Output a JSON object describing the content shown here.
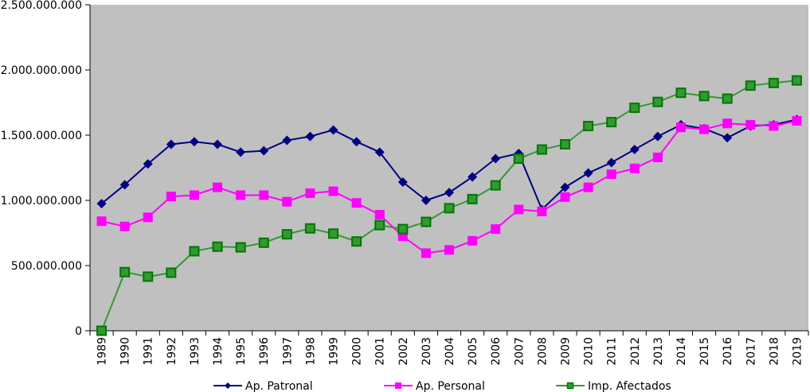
{
  "chart_data": {
    "type": "line",
    "title": "",
    "xlabel": "",
    "ylabel": "",
    "ylim": [
      0,
      2500000000
    ],
    "yticks": [
      0,
      500000000,
      1000000000,
      1500000000,
      2000000000,
      2500000000
    ],
    "ytick_labels": [
      "0",
      "500.000.000",
      "1.000.000.000",
      "1.500.000.000",
      "2.000.000.000",
      "2.500.000.000"
    ],
    "grid": false,
    "legend_position": "bottom",
    "plot_background": "#C0C0C0",
    "categories": [
      "1989",
      "1990",
      "1991",
      "1992",
      "1993",
      "1994",
      "1995",
      "1996",
      "1997",
      "1998",
      "1999",
      "2000",
      "2001",
      "2002",
      "2003",
      "2004",
      "2005",
      "2006",
      "2007",
      "2008",
      "2009",
      "2010",
      "2011",
      "2012",
      "2013",
      "2014",
      "2015",
      "2016",
      "2017",
      "2018",
      "2019"
    ],
    "series": [
      {
        "name": "Ap. Patronal",
        "color": "#000080",
        "marker": "diamond",
        "values": [
          975000000,
          1120000000,
          1280000000,
          1430000000,
          1450000000,
          1430000000,
          1370000000,
          1380000000,
          1460000000,
          1490000000,
          1540000000,
          1450000000,
          1370000000,
          1140000000,
          1000000000,
          1060000000,
          1180000000,
          1320000000,
          1360000000,
          930000000,
          1100000000,
          1210000000,
          1290000000,
          1390000000,
          1490000000,
          1580000000,
          1550000000,
          1480000000,
          1570000000,
          1580000000,
          1620000000
        ]
      },
      {
        "name": "Ap. Personal",
        "color": "#FF00FF",
        "marker": "square",
        "values": [
          840000000,
          800000000,
          870000000,
          1030000000,
          1040000000,
          1100000000,
          1040000000,
          1040000000,
          990000000,
          1055000000,
          1070000000,
          980000000,
          890000000,
          725000000,
          595000000,
          620000000,
          690000000,
          780000000,
          930000000,
          915000000,
          1025000000,
          1100000000,
          1200000000,
          1245000000,
          1330000000,
          1560000000,
          1545000000,
          1590000000,
          1580000000,
          1570000000,
          1610000000
        ]
      },
      {
        "name": "Imp. Afectados",
        "color": "#339933",
        "marker_edge": "#007700",
        "marker": "square-outlined",
        "values": [
          0,
          450000000,
          415000000,
          445000000,
          610000000,
          645000000,
          640000000,
          675000000,
          740000000,
          785000000,
          745000000,
          685000000,
          810000000,
          780000000,
          835000000,
          940000000,
          1010000000,
          1115000000,
          1320000000,
          1390000000,
          1430000000,
          1570000000,
          1600000000,
          1710000000,
          1755000000,
          1825000000,
          1800000000,
          1780000000,
          1880000000,
          1900000000,
          1920000000
        ]
      }
    ]
  }
}
